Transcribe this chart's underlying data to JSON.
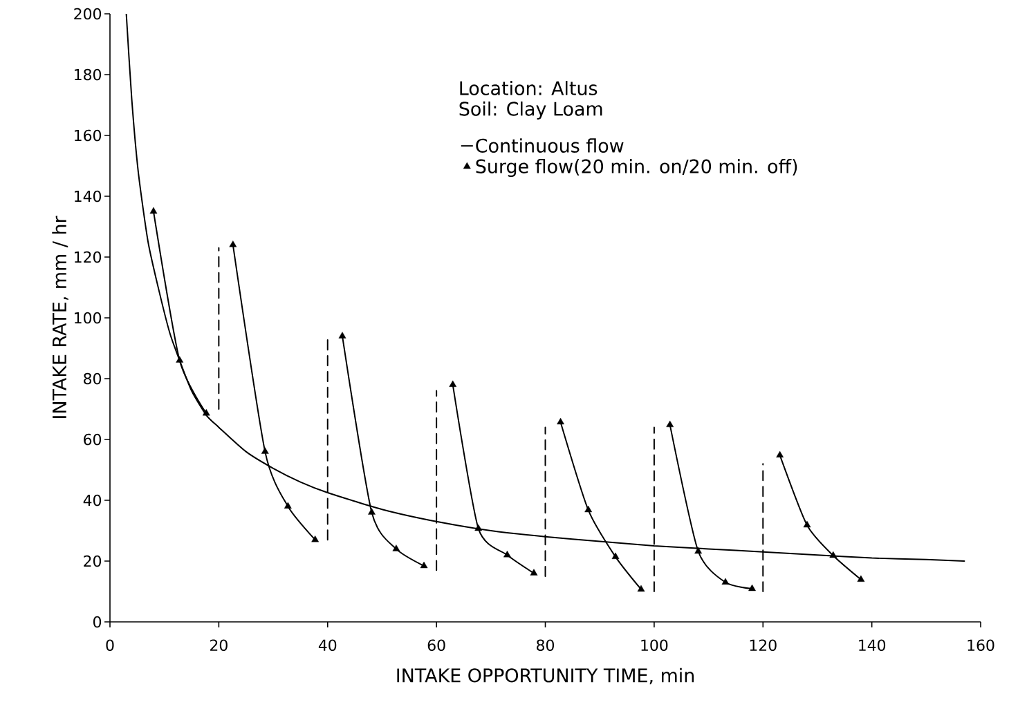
{
  "chart_data": {
    "type": "line",
    "xlabel": "INTAKE OPPORTUNITY TIME, min",
    "ylabel": "INTAKE RATE,  mm / hr",
    "annotations": [
      "Location:  Altus",
      "Soil:  Clay Loam"
    ],
    "xlim": [
      0,
      160
    ],
    "ylim": [
      0,
      200
    ],
    "xticks": [
      0,
      20,
      40,
      60,
      80,
      100,
      120,
      140,
      160
    ],
    "yticks": [
      0,
      20,
      40,
      60,
      80,
      100,
      120,
      140,
      160,
      180,
      200
    ],
    "grid": false,
    "legend": "top right",
    "series": [
      {
        "name": "Continuous flow",
        "color": "#000000",
        "marker": "none",
        "line_style": "solid",
        "x": [
          3,
          4,
          5.2,
          7,
          9,
          11,
          12.8,
          15,
          17.7,
          20,
          25,
          30,
          35,
          40,
          50,
          60,
          70,
          80,
          90,
          100,
          110,
          120,
          130,
          140,
          150,
          157
        ],
        "values": [
          200,
          172,
          148,
          125,
          109,
          95,
          86,
          76,
          68,
          64,
          56,
          50.5,
          46,
          42.5,
          37,
          33,
          30,
          28,
          26.5,
          25,
          24,
          23,
          22,
          21,
          20.5,
          20
        ]
      },
      {
        "name": "Surge flow(20 min. on/20 min. off)",
        "color": "#000000",
        "marker": "triangle",
        "line_style": "solid",
        "x": [
          8,
          12.8,
          17.7,
          20,
          22.6,
          28.5,
          32.7,
          37.7,
          40,
          42.7,
          48.1,
          52.6,
          57.7,
          60,
          63,
          67.7,
          73,
          77.9,
          80,
          82.8,
          87.9,
          92.9,
          97.6,
          100,
          102.9,
          108.1,
          113.1,
          118,
          120,
          123.1,
          128.1,
          132.9,
          138
        ],
        "values": [
          135,
          86,
          68.6,
          null,
          124,
          56,
          38,
          27,
          null,
          94,
          36,
          24,
          18.4,
          null,
          78,
          30.7,
          22,
          16,
          null,
          65.7,
          36.8,
          21.4,
          10.7,
          null,
          64.8,
          23.2,
          13,
          10.9,
          null,
          54.8,
          31.8,
          21.8,
          13.9
        ]
      },
      {
        "color": "#000000",
        "marker": "none",
        "line_style": "dashed",
        "x": [
          20,
          20
        ],
        "values": [
          70,
          123
        ]
      },
      {
        "color": "#000000",
        "marker": "none",
        "line_style": "dashed",
        "x": [
          40,
          40
        ],
        "values": [
          27,
          94
        ]
      },
      {
        "color": "#000000",
        "marker": "none",
        "line_style": "dashed",
        "x": [
          60,
          60
        ],
        "values": [
          17,
          76
        ]
      },
      {
        "color": "#000000",
        "marker": "none",
        "line_style": "dashed",
        "x": [
          80,
          80
        ],
        "values": [
          15,
          64
        ]
      },
      {
        "color": "#000000",
        "marker": "none",
        "line_style": "dashed",
        "x": [
          100,
          100
        ],
        "values": [
          10,
          64
        ]
      },
      {
        "color": "#000000",
        "marker": "none",
        "line_style": "dashed",
        "x": [
          120,
          120
        ],
        "values": [
          10,
          52
        ]
      }
    ]
  }
}
